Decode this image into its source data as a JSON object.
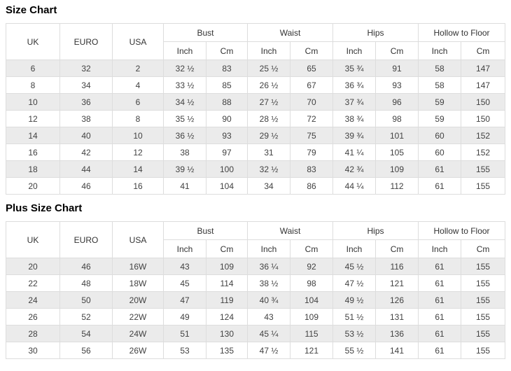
{
  "page": {
    "background_color": "#ffffff",
    "border_color": "#dddddd",
    "stripe_color": "#ebebeb",
    "text_color": "#424242"
  },
  "chart_data": [
    {
      "type": "table",
      "title": "Size Chart",
      "header": {
        "uk": "UK",
        "euro": "EURO",
        "usa": "USA",
        "groups": [
          "Bust",
          "Waist",
          "Hips",
          "Hollow to Floor"
        ],
        "unit_inch": "Inch",
        "unit_cm": "Cm"
      },
      "rows": [
        [
          "6",
          "32",
          "2",
          "32 ½",
          "83",
          "25 ½",
          "65",
          "35 ¾",
          "91",
          "58",
          "147"
        ],
        [
          "8",
          "34",
          "4",
          "33 ½",
          "85",
          "26 ½",
          "67",
          "36 ¾",
          "93",
          "58",
          "147"
        ],
        [
          "10",
          "36",
          "6",
          "34 ½",
          "88",
          "27 ½",
          "70",
          "37 ¾",
          "96",
          "59",
          "150"
        ],
        [
          "12",
          "38",
          "8",
          "35 ½",
          "90",
          "28 ½",
          "72",
          "38 ¾",
          "98",
          "59",
          "150"
        ],
        [
          "14",
          "40",
          "10",
          "36 ½",
          "93",
          "29 ½",
          "75",
          "39 ¾",
          "101",
          "60",
          "152"
        ],
        [
          "16",
          "42",
          "12",
          "38",
          "97",
          "31",
          "79",
          "41 ¼",
          "105",
          "60",
          "152"
        ],
        [
          "18",
          "44",
          "14",
          "39 ½",
          "100",
          "32 ½",
          "83",
          "42 ¾",
          "109",
          "61",
          "155"
        ],
        [
          "20",
          "46",
          "16",
          "41",
          "104",
          "34",
          "86",
          "44 ¼",
          "112",
          "61",
          "155"
        ]
      ]
    },
    {
      "type": "table",
      "title": "Plus Size Chart",
      "header": {
        "uk": "UK",
        "euro": "EURO",
        "usa": "USA",
        "groups": [
          "Bust",
          "Waist",
          "Hips",
          "Hollow to Floor"
        ],
        "unit_inch": "Inch",
        "unit_cm": "Cm"
      },
      "rows": [
        [
          "20",
          "46",
          "16W",
          "43",
          "109",
          "36 ¼",
          "92",
          "45 ½",
          "116",
          "61",
          "155"
        ],
        [
          "22",
          "48",
          "18W",
          "45",
          "114",
          "38 ½",
          "98",
          "47 ½",
          "121",
          "61",
          "155"
        ],
        [
          "24",
          "50",
          "20W",
          "47",
          "119",
          "40 ¾",
          "104",
          "49 ½",
          "126",
          "61",
          "155"
        ],
        [
          "26",
          "52",
          "22W",
          "49",
          "124",
          "43",
          "109",
          "51 ½",
          "131",
          "61",
          "155"
        ],
        [
          "28",
          "54",
          "24W",
          "51",
          "130",
          "45 ¼",
          "115",
          "53 ½",
          "136",
          "61",
          "155"
        ],
        [
          "30",
          "56",
          "26W",
          "53",
          "135",
          "47 ½",
          "121",
          "55 ½",
          "141",
          "61",
          "155"
        ]
      ]
    }
  ]
}
